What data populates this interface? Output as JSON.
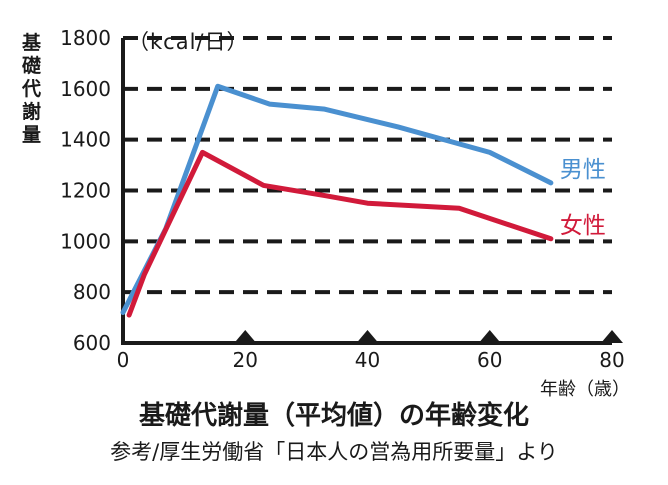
{
  "chart_data": {
    "type": "line",
    "ylabel": "基礎代謝量",
    "unit": "（kcal/日）",
    "xlabel": "年齢（歳）",
    "title": "基礎代謝量（平均値）の年齢変化",
    "source": "参考/厚生労働省「日本人の営為用所要量」より",
    "xlim": [
      0,
      80
    ],
    "ylim": [
      600,
      1800
    ],
    "x_ticks": [
      "0",
      "20",
      "40",
      "60",
      "80"
    ],
    "y_ticks": [
      "600",
      "800",
      "1000",
      "1200",
      "1400",
      "1600",
      "1800"
    ],
    "grid": "horizontal dashed",
    "series": [
      {
        "name": "男性",
        "color": "#4a90d0",
        "x": [
          0,
          7,
          15.5,
          24,
          33,
          45,
          60,
          70
        ],
        "y": [
          720,
          1050,
          1610,
          1540,
          1520,
          1450,
          1350,
          1230
        ]
      },
      {
        "name": "女性",
        "color": "#d11a3a",
        "x": [
          1,
          3.5,
          13,
          23,
          33,
          40,
          55,
          70
        ],
        "y": [
          710,
          870,
          1350,
          1220,
          1180,
          1150,
          1130,
          1010
        ]
      }
    ]
  }
}
